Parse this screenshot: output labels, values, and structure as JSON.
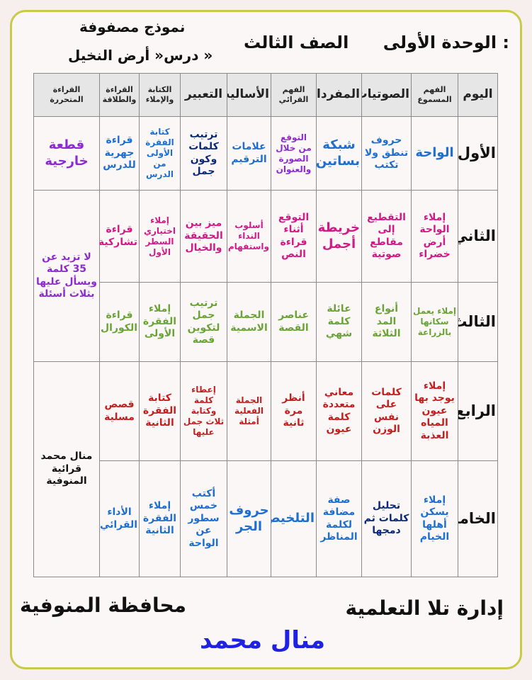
{
  "header": {
    "unit": "الوحدة الأولى  :",
    "grade": "الصف الثالث",
    "model_line1": "نموذج مصفوفة",
    "model_line2": "درس« أرض النخيل »"
  },
  "table": {
    "columns": [
      "اليوم",
      "الفهم المسموع",
      "الصوتيات",
      "المفردات",
      "الفهم القرائي",
      "الأساليب",
      "التعبير",
      "الكتابة والإملاء",
      "القراءة والطلاقة",
      "القراءة المتحررة"
    ],
    "rows": [
      {
        "day": "الأول",
        "cells": [
          "الواحة",
          "حروف تنطق ولا تكتب",
          "شبكة بساتين",
          "التوقع من خلال الصورة والعنوان",
          "علامات الترقيم",
          "ترتيب كلمات وكون جمل",
          "كتابة الفقرة الأولى من الدرس",
          "قراءة جهرية للدرس",
          "قطعة خارجية"
        ]
      },
      {
        "day": "الثاني",
        "cells": [
          "إملاء الواحة أرض خضراء",
          "التقطيع إلى مقاطع صوتية",
          "خريطة أجمل",
          "التوقع أثناء قراءة النص",
          "أسلوب النداء واستفهام",
          "ميز بين الحقيقة والخيال",
          "إملاء اختياري السطر الأول",
          "قراءة تشاركية",
          "لا تزيد عن 35 كلمة ويسأل عليها بثلاث أسئلة"
        ]
      },
      {
        "day": "الثالث",
        "cells": [
          "إملاء يعمل سكانها بالزراعة",
          "أنواع المد الثلاثة",
          "عائلة كلمة شهي",
          "عناصر القصة",
          "الجملة الاسمية",
          "ترتيب جمل لتكوين قصة",
          "إملاء الفقرة الأولى",
          "قراءة الكورال",
          ""
        ]
      },
      {
        "day": "الرابع",
        "cells": [
          "إملاء يوجد بها عيون المياه العذبة",
          "كلمات على نفس الوزن",
          "معاني متعددة كلمة عيون",
          "أنظر مرة ثانية",
          "الجملة الفعلية أمثلة",
          "إعطاء كلمة وكتابة ثلاث جمل عليها",
          "كتابة الفقرة الثانية",
          "قصص مسلية",
          "منال محمد قرائية المنوفية"
        ]
      },
      {
        "day": "الخامس",
        "cells": [
          "إملاء يسكن أهلها الخيام",
          "تحليل كلمات ثم دمجها",
          "صفة مضافة لكلمة المناظر",
          "التلخيص",
          "حروف الجر",
          "أكتب خمس سطور عن الواحة",
          "إملاء الفقرة الثانية",
          "الأداء القرائي",
          ""
        ]
      }
    ]
  },
  "footer": {
    "admin": "إدارة تلا التعلمية",
    "governorate": "محافظة المنوفية",
    "author": "منال محمد"
  },
  "colors": {
    "frame": "#c9c94a",
    "header_fill": "#e6e6e6",
    "author": "#1f22e0"
  }
}
